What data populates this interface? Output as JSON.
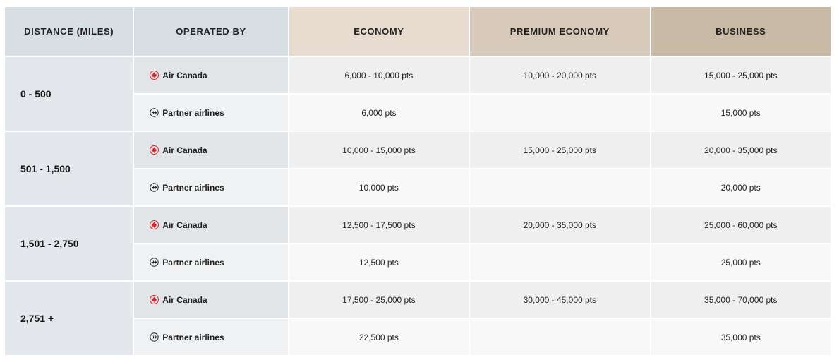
{
  "columns": {
    "distance": "DISTANCE (MILES)",
    "operated_by": "OPERATED BY",
    "economy": "ECONOMY",
    "premium_economy": "PREMIUM ECONOMY",
    "business": "BUSINESS"
  },
  "colors": {
    "air_canada_icon": "#d6262c",
    "partner_icon": "#222222"
  },
  "icons": {
    "air_canada": "maple-leaf-icon",
    "partner": "airplane-circle-icon"
  },
  "rows": [
    {
      "distance": "0 - 500",
      "air_canada": {
        "label": "Air Canada",
        "economy": "6,000 - 10,000 pts",
        "premium_economy": "10,000 - 20,000 pts",
        "business": "15,000 - 25,000 pts"
      },
      "partner": {
        "label": "Partner airlines",
        "economy": "6,000 pts",
        "premium_economy": "",
        "business": "15,000 pts"
      }
    },
    {
      "distance": "501 - 1,500",
      "air_canada": {
        "label": "Air Canada",
        "economy": "10,000 - 15,000 pts",
        "premium_economy": "15,000 - 25,000 pts",
        "business": "20,000 - 35,000 pts"
      },
      "partner": {
        "label": "Partner airlines",
        "economy": "10,000 pts",
        "premium_economy": "",
        "business": "20,000 pts"
      }
    },
    {
      "distance": "1,501 - 2,750",
      "air_canada": {
        "label": "Air Canada",
        "economy": "12,500 - 17,500 pts",
        "premium_economy": "20,000 - 35,000 pts",
        "business": "25,000 - 60,000 pts"
      },
      "partner": {
        "label": "Partner airlines",
        "economy": "12,500 pts",
        "premium_economy": "",
        "business": "25,000 pts"
      }
    },
    {
      "distance": "2,751 +",
      "air_canada": {
        "label": "Air Canada",
        "economy": "17,500 - 25,000 pts",
        "premium_economy": "30,000 - 45,000 pts",
        "business": "35,000 - 70,000 pts"
      },
      "partner": {
        "label": "Partner airlines",
        "economy": "22,500 pts",
        "premium_economy": "",
        "business": "35,000 pts"
      }
    }
  ]
}
